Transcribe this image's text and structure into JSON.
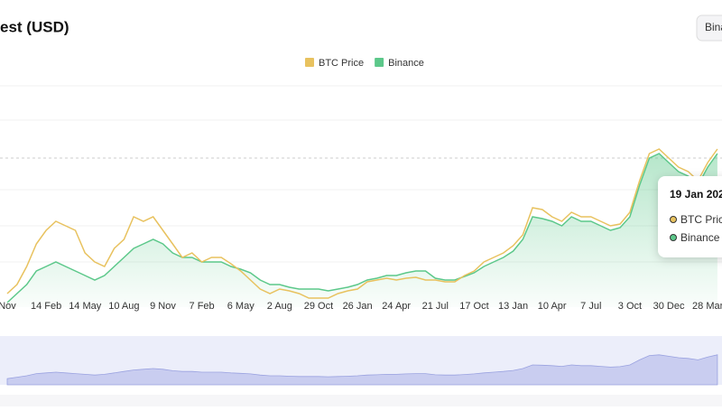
{
  "header": {
    "title": "est (USD)",
    "button": "Bina"
  },
  "chart_data": {
    "type": "line",
    "categories": [
      "Nov",
      null,
      null,
      null,
      "14 Feb",
      null,
      null,
      null,
      "14 May",
      null,
      null,
      null,
      "10 Aug",
      null,
      null,
      null,
      "9 Nov",
      null,
      null,
      null,
      "7 Feb",
      null,
      null,
      null,
      "6 May",
      null,
      null,
      null,
      "2 Aug",
      null,
      null,
      null,
      "29 Oct",
      null,
      null,
      null,
      "26 Jan",
      null,
      null,
      null,
      "24 Apr",
      null,
      null,
      null,
      "21 Jul",
      null,
      null,
      null,
      "17 Oct",
      null,
      null,
      null,
      "13 Jan",
      null,
      null,
      null,
      "10 Apr",
      null,
      null,
      null,
      "7 Jul",
      null,
      null,
      null,
      "3 Oct",
      null,
      null,
      null,
      "30 Dec",
      null,
      null,
      null,
      "28 Mar",
      null
    ],
    "series": [
      {
        "name": "BTC Price",
        "color": "#e8c25f",
        "values": [
          15,
          25,
          45,
          70,
          85,
          95,
          90,
          85,
          60,
          50,
          45,
          65,
          75,
          100,
          95,
          100,
          85,
          70,
          55,
          60,
          50,
          55,
          55,
          48,
          40,
          30,
          20,
          15,
          20,
          18,
          15,
          10,
          10,
          10,
          15,
          18,
          20,
          28,
          30,
          32,
          30,
          32,
          33,
          30,
          30,
          28,
          28,
          35,
          40,
          50,
          55,
          60,
          68,
          80,
          110,
          108,
          100,
          95,
          105,
          100,
          100,
          95,
          90,
          92,
          105,
          140,
          170,
          175,
          165,
          155,
          150,
          140,
          160,
          175
        ]
      },
      {
        "name": "Binance",
        "color": "#5cc88a",
        "values": [
          5,
          15,
          25,
          40,
          45,
          50,
          45,
          40,
          35,
          30,
          35,
          45,
          55,
          65,
          70,
          75,
          70,
          60,
          55,
          55,
          50,
          50,
          50,
          45,
          42,
          38,
          30,
          25,
          25,
          22,
          20,
          20,
          20,
          18,
          20,
          22,
          25,
          30,
          32,
          35,
          35,
          38,
          40,
          40,
          32,
          30,
          30,
          34,
          38,
          45,
          50,
          55,
          62,
          75,
          100,
          98,
          95,
          90,
          100,
          95,
          95,
          90,
          85,
          88,
          100,
          135,
          165,
          170,
          160,
          150,
          145,
          135,
          155,
          170
        ]
      }
    ]
  },
  "tooltip": {
    "date": "19 Jan 202",
    "items": [
      "BTC Pric",
      "Binance"
    ]
  }
}
